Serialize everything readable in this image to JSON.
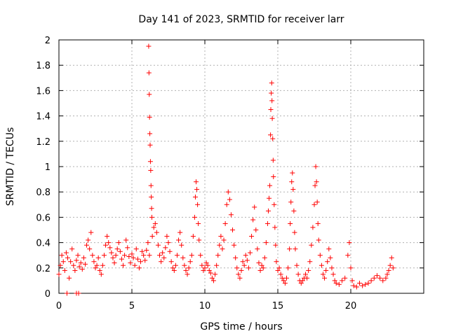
{
  "chart_data": {
    "type": "scatter",
    "title": "Day 141 of 2023, SRMTID for receiver larr",
    "xlabel": "GPS time / hours",
    "ylabel": "SRMTID / TECUs",
    "xlim": [
      0,
      25
    ],
    "ylim": [
      0,
      2
    ],
    "xticks": [
      0,
      5,
      10,
      15,
      20
    ],
    "yticks": [
      0,
      0.2,
      0.4,
      0.6,
      0.8,
      1,
      1.2,
      1.4,
      1.6,
      1.8,
      2
    ],
    "grid": true,
    "legend": "none",
    "marker": "+",
    "marker_color": "#ff0000",
    "series": [
      {
        "name": "larr",
        "points": [
          [
            0.0,
            0.15
          ],
          [
            0.1,
            0.22
          ],
          [
            0.2,
            0.3
          ],
          [
            0.3,
            0.25
          ],
          [
            0.4,
            0.18
          ],
          [
            0.5,
            0.32
          ],
          [
            0.6,
            0.28
          ],
          [
            0.7,
            0.12
          ],
          [
            0.8,
            0.25
          ],
          [
            0.9,
            0.35
          ],
          [
            1.0,
            0.22
          ],
          [
            1.1,
            0.18
          ],
          [
            1.2,
            0.26
          ],
          [
            1.3,
            0.3
          ],
          [
            1.4,
            0.21
          ],
          [
            1.5,
            0.24
          ],
          [
            1.6,
            0.19
          ],
          [
            1.7,
            0.28
          ],
          [
            1.8,
            0.23
          ],
          [
            1.9,
            0.38
          ],
          [
            2.0,
            0.42
          ],
          [
            2.1,
            0.35
          ],
          [
            2.2,
            0.48
          ],
          [
            2.3,
            0.3
          ],
          [
            2.4,
            0.25
          ],
          [
            2.5,
            0.2
          ],
          [
            2.6,
            0.22
          ],
          [
            2.7,
            0.28
          ],
          [
            2.8,
            0.18
          ],
          [
            2.9,
            0.15
          ],
          [
            3.0,
            0.22
          ],
          [
            3.1,
            0.3
          ],
          [
            3.2,
            0.38
          ],
          [
            3.3,
            0.45
          ],
          [
            3.4,
            0.4
          ],
          [
            3.5,
            0.36
          ],
          [
            3.6,
            0.32
          ],
          [
            3.7,
            0.28
          ],
          [
            3.8,
            0.24
          ],
          [
            3.9,
            0.3
          ],
          [
            4.0,
            0.35
          ],
          [
            4.1,
            0.4
          ],
          [
            4.2,
            0.33
          ],
          [
            4.3,
            0.27
          ],
          [
            4.4,
            0.22
          ],
          [
            4.5,
            0.3
          ],
          [
            4.6,
            0.42
          ],
          [
            4.7,
            0.36
          ],
          [
            4.8,
            0.29
          ],
          [
            4.9,
            0.24
          ],
          [
            5.0,
            0.31
          ],
          [
            5.1,
            0.28
          ],
          [
            5.2,
            0.22
          ],
          [
            5.3,
            0.35
          ],
          [
            5.4,
            0.27
          ],
          [
            5.5,
            0.2
          ],
          [
            5.6,
            0.25
          ],
          [
            5.7,
            0.33
          ],
          [
            5.8,
            0.3
          ],
          [
            5.9,
            0.26
          ],
          [
            6.0,
            0.34
          ],
          [
            6.1,
            0.4
          ],
          [
            6.2,
            0.3
          ],
          [
            6.15,
            1.95
          ],
          [
            6.17,
            1.74
          ],
          [
            6.19,
            1.57
          ],
          [
            6.21,
            1.39
          ],
          [
            6.23,
            1.26
          ],
          [
            6.25,
            1.17
          ],
          [
            6.27,
            1.04
          ],
          [
            6.29,
            0.97
          ],
          [
            6.31,
            0.85
          ],
          [
            6.33,
            0.76
          ],
          [
            6.35,
            0.67
          ],
          [
            6.37,
            0.6
          ],
          [
            6.4,
            0.45
          ],
          [
            6.5,
            0.52
          ],
          [
            6.6,
            0.55
          ],
          [
            6.7,
            0.48
          ],
          [
            6.8,
            0.38
          ],
          [
            6.9,
            0.3
          ],
          [
            7.0,
            0.25
          ],
          [
            7.1,
            0.32
          ],
          [
            7.2,
            0.28
          ],
          [
            7.3,
            0.36
          ],
          [
            7.4,
            0.45
          ],
          [
            7.5,
            0.4
          ],
          [
            7.6,
            0.33
          ],
          [
            7.7,
            0.25
          ],
          [
            7.8,
            0.2
          ],
          [
            7.9,
            0.18
          ],
          [
            8.0,
            0.22
          ],
          [
            8.1,
            0.3
          ],
          [
            8.2,
            0.42
          ],
          [
            8.3,
            0.48
          ],
          [
            8.4,
            0.38
          ],
          [
            8.5,
            0.28
          ],
          [
            8.6,
            0.22
          ],
          [
            8.7,
            0.18
          ],
          [
            8.8,
            0.15
          ],
          [
            8.9,
            0.2
          ],
          [
            9.0,
            0.25
          ],
          [
            9.1,
            0.3
          ],
          [
            9.2,
            0.45
          ],
          [
            9.3,
            0.6
          ],
          [
            9.35,
            0.76
          ],
          [
            9.4,
            0.88
          ],
          [
            9.45,
            0.82
          ],
          [
            9.5,
            0.7
          ],
          [
            9.55,
            0.55
          ],
          [
            9.6,
            0.42
          ],
          [
            9.7,
            0.3
          ],
          [
            9.8,
            0.22
          ],
          [
            9.9,
            0.18
          ],
          [
            10.0,
            0.2
          ],
          [
            10.1,
            0.24
          ],
          [
            10.2,
            0.22
          ],
          [
            10.3,
            0.18
          ],
          [
            10.4,
            0.16
          ],
          [
            10.5,
            0.12
          ],
          [
            10.6,
            0.1
          ],
          [
            10.7,
            0.15
          ],
          [
            10.8,
            0.22
          ],
          [
            10.9,
            0.3
          ],
          [
            11.0,
            0.38
          ],
          [
            11.1,
            0.45
          ],
          [
            11.2,
            0.35
          ],
          [
            11.3,
            0.42
          ],
          [
            11.4,
            0.55
          ],
          [
            11.5,
            0.7
          ],
          [
            11.6,
            0.8
          ],
          [
            11.7,
            0.74
          ],
          [
            11.8,
            0.62
          ],
          [
            11.9,
            0.5
          ],
          [
            12.0,
            0.38
          ],
          [
            12.1,
            0.28
          ],
          [
            12.2,
            0.2
          ],
          [
            12.3,
            0.15
          ],
          [
            12.4,
            0.12
          ],
          [
            12.5,
            0.18
          ],
          [
            12.6,
            0.25
          ],
          [
            12.7,
            0.22
          ],
          [
            12.8,
            0.3
          ],
          [
            12.9,
            0.26
          ],
          [
            13.0,
            0.2
          ],
          [
            13.1,
            0.32
          ],
          [
            13.2,
            0.45
          ],
          [
            13.3,
            0.58
          ],
          [
            13.4,
            0.68
          ],
          [
            13.5,
            0.5
          ],
          [
            13.6,
            0.35
          ],
          [
            13.7,
            0.24
          ],
          [
            13.8,
            0.18
          ],
          [
            13.9,
            0.22
          ],
          [
            14.0,
            0.2
          ],
          [
            14.1,
            0.28
          ],
          [
            14.2,
            0.4
          ],
          [
            14.3,
            0.55
          ],
          [
            14.35,
            0.65
          ],
          [
            14.4,
            0.75
          ],
          [
            14.45,
            0.85
          ],
          [
            14.5,
            1.25
          ],
          [
            14.52,
            1.45
          ],
          [
            14.55,
            1.58
          ],
          [
            14.58,
            1.66
          ],
          [
            14.6,
            1.52
          ],
          [
            14.62,
            1.38
          ],
          [
            14.65,
            1.22
          ],
          [
            14.68,
            1.05
          ],
          [
            14.7,
            0.92
          ],
          [
            14.75,
            0.7
          ],
          [
            14.8,
            0.52
          ],
          [
            14.85,
            0.38
          ],
          [
            14.9,
            0.25
          ],
          [
            15.0,
            0.18
          ],
          [
            15.1,
            0.2
          ],
          [
            15.2,
            0.15
          ],
          [
            15.3,
            0.12
          ],
          [
            15.4,
            0.1
          ],
          [
            15.5,
            0.08
          ],
          [
            15.6,
            0.12
          ],
          [
            15.7,
            0.2
          ],
          [
            15.8,
            0.35
          ],
          [
            15.85,
            0.55
          ],
          [
            15.9,
            0.72
          ],
          [
            15.95,
            0.88
          ],
          [
            16.0,
            0.95
          ],
          [
            16.05,
            0.82
          ],
          [
            16.1,
            0.65
          ],
          [
            16.15,
            0.48
          ],
          [
            16.2,
            0.35
          ],
          [
            16.3,
            0.22
          ],
          [
            16.4,
            0.15
          ],
          [
            16.5,
            0.1
          ],
          [
            16.6,
            0.08
          ],
          [
            16.7,
            0.1
          ],
          [
            16.8,
            0.12
          ],
          [
            16.9,
            0.15
          ],
          [
            17.0,
            0.12
          ],
          [
            17.1,
            0.18
          ],
          [
            17.2,
            0.25
          ],
          [
            17.3,
            0.38
          ],
          [
            17.4,
            0.52
          ],
          [
            17.5,
            0.7
          ],
          [
            17.55,
            0.85
          ],
          [
            17.6,
            1.0
          ],
          [
            17.65,
            0.88
          ],
          [
            17.7,
            0.72
          ],
          [
            17.75,
            0.55
          ],
          [
            17.8,
            0.42
          ],
          [
            17.9,
            0.3
          ],
          [
            18.0,
            0.22
          ],
          [
            18.1,
            0.15
          ],
          [
            18.2,
            0.12
          ],
          [
            18.3,
            0.18
          ],
          [
            18.4,
            0.25
          ],
          [
            18.5,
            0.35
          ],
          [
            18.6,
            0.28
          ],
          [
            18.7,
            0.2
          ],
          [
            18.8,
            0.15
          ],
          [
            18.9,
            0.1
          ],
          [
            19.0,
            0.08
          ],
          [
            19.2,
            0.07
          ],
          [
            19.4,
            0.1
          ],
          [
            19.6,
            0.12
          ],
          [
            19.8,
            0.3
          ],
          [
            19.9,
            0.4
          ],
          [
            20.0,
            0.2
          ],
          [
            20.1,
            0.1
          ],
          [
            20.2,
            0.06
          ],
          [
            20.4,
            0.05
          ],
          [
            20.6,
            0.08
          ],
          [
            20.8,
            0.06
          ],
          [
            21.0,
            0.07
          ],
          [
            21.2,
            0.08
          ],
          [
            21.4,
            0.1
          ],
          [
            21.6,
            0.12
          ],
          [
            21.8,
            0.14
          ],
          [
            22.0,
            0.12
          ],
          [
            22.2,
            0.1
          ],
          [
            22.4,
            0.12
          ],
          [
            22.5,
            0.15
          ],
          [
            22.6,
            0.18
          ],
          [
            22.7,
            0.22
          ],
          [
            22.8,
            0.28
          ],
          [
            22.9,
            0.2
          ],
          [
            0.55,
            0.0
          ],
          [
            1.2,
            0.0
          ],
          [
            1.35,
            0.0
          ]
        ]
      }
    ]
  }
}
